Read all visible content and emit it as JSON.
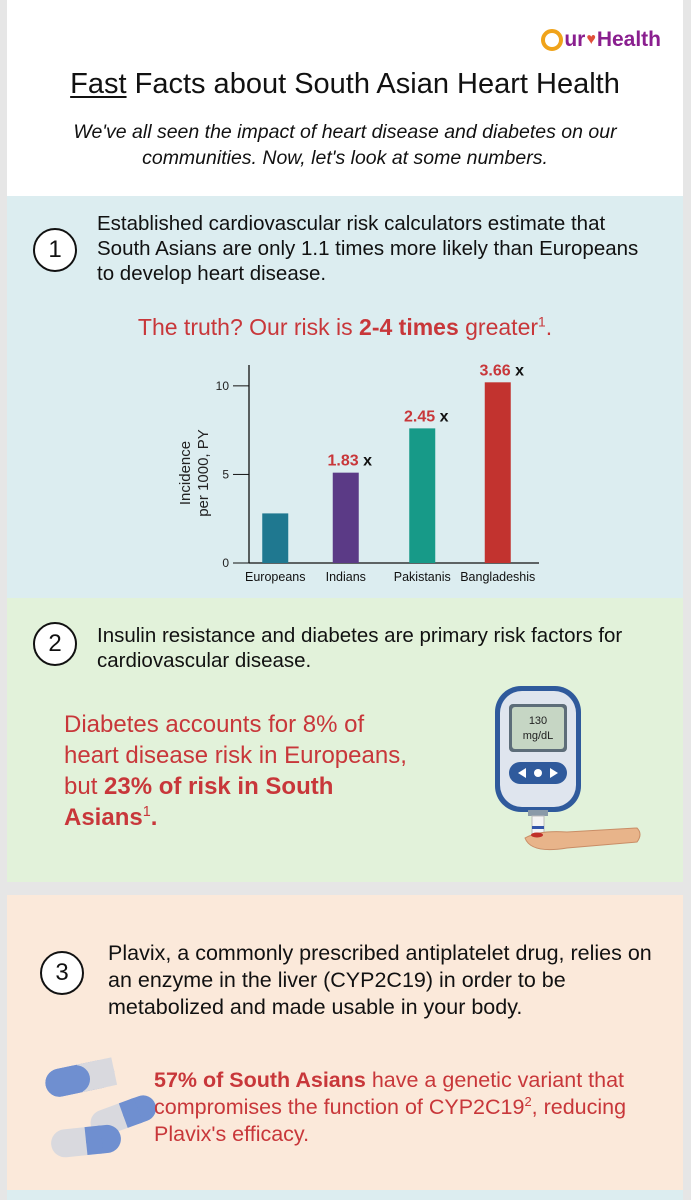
{
  "header": {
    "logo": {
      "o": "O",
      "ur": "ur",
      "heart": "♥",
      "health": "Health"
    },
    "title_underlined": "Fast",
    "title_rest": " Facts about South Asian Heart Health",
    "subtitle": "We've all seen the impact of heart disease and diabetes on our communities. Now, let's look at some numbers."
  },
  "section1": {
    "number": "1",
    "text": "Established cardiovascular risk calculators estimate that South Asians are only 1.1 times more likely than Europeans to develop heart disease.",
    "highlight_pre": "The truth? Our risk is ",
    "highlight_bold": "2-4 times",
    "highlight_post": " greater",
    "highlight_sup": "1",
    "highlight_end": "."
  },
  "section2": {
    "number": "2",
    "text": "Insulin resistance and diabetes are primary risk factors for cardiovascular disease.",
    "highlight_pre": "Diabetes accounts for 8% of heart disease risk in Europeans, but ",
    "highlight_bold": "23% of risk in South Asians",
    "highlight_sup": "1",
    "highlight_end": ".",
    "meter_value": "130",
    "meter_unit": "mg/dL"
  },
  "section3": {
    "number": "3",
    "text": "Plavix, a commonly prescribed antiplatelet drug, relies on an enzyme in the liver (CYP2C19) in order to be metabolized and made usable in your body.",
    "highlight_bold": "57% of South Asians",
    "highlight_mid": " have a genetic variant that compromises the function of CYP2C19",
    "highlight_sup": "2",
    "highlight_end": ", reducing Plavix's efficacy."
  },
  "chart_data": {
    "type": "bar",
    "categories": [
      "Europeans",
      "Indians",
      "Pakistanis",
      "Bangladeshis"
    ],
    "values": [
      2.8,
      5.1,
      7.6,
      10.2
    ],
    "data_labels": [
      "",
      "1.83",
      "2.45",
      "3.66"
    ],
    "label_suffix": "x",
    "colors": [
      "#1f7890",
      "#5b3a86",
      "#179a88",
      "#c2332f"
    ],
    "ylabel_line1": "Incidence",
    "ylabel_line2": "per 1000, PY",
    "xlabel": "",
    "ylim": [
      0,
      10.5
    ],
    "yticks": [
      0,
      5,
      10
    ],
    "grid": false
  }
}
